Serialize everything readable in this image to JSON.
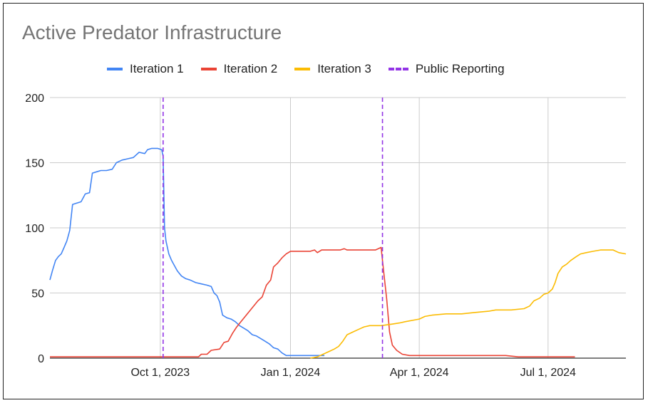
{
  "chart_data": {
    "type": "line",
    "title": "Active Predator Infrastructure",
    "xlabel": "",
    "ylabel": "",
    "ylim": [
      0,
      200
    ],
    "xlim": [
      "2023-07-15",
      "2024-08-25"
    ],
    "x_ticks": [
      {
        "date": "2023-10-01",
        "label": "Oct 1, 2023"
      },
      {
        "date": "2024-01-01",
        "label": "Jan 1, 2024"
      },
      {
        "date": "2024-04-01",
        "label": "Apr 1, 2024"
      },
      {
        "date": "2024-07-01",
        "label": "Jul 1, 2024"
      }
    ],
    "y_ticks": [
      0,
      50,
      100,
      150,
      200
    ],
    "grid": true,
    "legend_position": "top",
    "series": [
      {
        "name": "Iteration 1",
        "color": "#4285F4",
        "points": [
          [
            "2023-07-15",
            60
          ],
          [
            "2023-07-17",
            68
          ],
          [
            "2023-07-19",
            75
          ],
          [
            "2023-07-21",
            78
          ],
          [
            "2023-07-23",
            80
          ],
          [
            "2023-07-25",
            85
          ],
          [
            "2023-07-27",
            90
          ],
          [
            "2023-07-29",
            98
          ],
          [
            "2023-07-31",
            118
          ],
          [
            "2023-08-03",
            119
          ],
          [
            "2023-08-06",
            120
          ],
          [
            "2023-08-09",
            126
          ],
          [
            "2023-08-12",
            127
          ],
          [
            "2023-08-14",
            142
          ],
          [
            "2023-08-17",
            143
          ],
          [
            "2023-08-20",
            144
          ],
          [
            "2023-08-24",
            144
          ],
          [
            "2023-08-28",
            145
          ],
          [
            "2023-08-31",
            150
          ],
          [
            "2023-09-04",
            152
          ],
          [
            "2023-09-08",
            153
          ],
          [
            "2023-09-12",
            154
          ],
          [
            "2023-09-16",
            158
          ],
          [
            "2023-09-20",
            157
          ],
          [
            "2023-09-22",
            160
          ],
          [
            "2023-09-25",
            161
          ],
          [
            "2023-09-29",
            161
          ],
          [
            "2023-10-02",
            160
          ],
          [
            "2023-10-03",
            155
          ],
          [
            "2023-10-04",
            100
          ],
          [
            "2023-10-05",
            90
          ],
          [
            "2023-10-07",
            80
          ],
          [
            "2023-10-09",
            75
          ],
          [
            "2023-10-11",
            71
          ],
          [
            "2023-10-13",
            67
          ],
          [
            "2023-10-16",
            63
          ],
          [
            "2023-10-19",
            61
          ],
          [
            "2023-10-22",
            60
          ],
          [
            "2023-10-26",
            58
          ],
          [
            "2023-10-30",
            57
          ],
          [
            "2023-11-03",
            56
          ],
          [
            "2023-11-06",
            55
          ],
          [
            "2023-11-08",
            50
          ],
          [
            "2023-11-10",
            48
          ],
          [
            "2023-11-12",
            43
          ],
          [
            "2023-11-14",
            33
          ],
          [
            "2023-11-17",
            31
          ],
          [
            "2023-11-20",
            30
          ],
          [
            "2023-11-23",
            28
          ],
          [
            "2023-11-26",
            25
          ],
          [
            "2023-11-29",
            23
          ],
          [
            "2023-12-02",
            21
          ],
          [
            "2023-12-05",
            18
          ],
          [
            "2023-12-08",
            17
          ],
          [
            "2023-12-11",
            15
          ],
          [
            "2023-12-14",
            13
          ],
          [
            "2023-12-17",
            11
          ],
          [
            "2023-12-20",
            8
          ],
          [
            "2023-12-23",
            7
          ],
          [
            "2023-12-26",
            4
          ],
          [
            "2023-12-29",
            2
          ],
          [
            "2024-01-05",
            2
          ],
          [
            "2024-01-15",
            2
          ],
          [
            "2024-01-25",
            2
          ]
        ]
      },
      {
        "name": "Iteration 2",
        "color": "#EA4335",
        "points": [
          [
            "2023-07-15",
            1
          ],
          [
            "2023-09-01",
            1
          ],
          [
            "2023-10-01",
            1
          ],
          [
            "2023-10-20",
            1
          ],
          [
            "2023-10-28",
            1
          ],
          [
            "2023-10-30",
            3
          ],
          [
            "2023-11-03",
            3
          ],
          [
            "2023-11-06",
            6
          ],
          [
            "2023-11-12",
            7
          ],
          [
            "2023-11-15",
            12
          ],
          [
            "2023-11-18",
            13
          ],
          [
            "2023-11-21",
            19
          ],
          [
            "2023-11-24",
            24
          ],
          [
            "2023-11-27",
            28
          ],
          [
            "2023-11-30",
            32
          ],
          [
            "2023-12-03",
            36
          ],
          [
            "2023-12-06",
            40
          ],
          [
            "2023-12-09",
            44
          ],
          [
            "2023-12-12",
            47
          ],
          [
            "2023-12-15",
            56
          ],
          [
            "2023-12-18",
            60
          ],
          [
            "2023-12-20",
            70
          ],
          [
            "2023-12-23",
            73
          ],
          [
            "2023-12-26",
            77
          ],
          [
            "2023-12-29",
            80
          ],
          [
            "2024-01-01",
            82
          ],
          [
            "2024-01-10",
            82
          ],
          [
            "2024-01-15",
            82
          ],
          [
            "2024-01-18",
            83
          ],
          [
            "2024-01-20",
            81
          ],
          [
            "2024-01-23",
            83
          ],
          [
            "2024-02-01",
            83
          ],
          [
            "2024-02-05",
            83
          ],
          [
            "2024-02-08",
            84
          ],
          [
            "2024-02-10",
            83
          ],
          [
            "2024-02-20",
            83
          ],
          [
            "2024-03-01",
            83
          ],
          [
            "2024-03-05",
            85
          ],
          [
            "2024-03-07",
            65
          ],
          [
            "2024-03-09",
            45
          ],
          [
            "2024-03-11",
            20
          ],
          [
            "2024-03-13",
            10
          ],
          [
            "2024-03-16",
            6
          ],
          [
            "2024-03-20",
            3
          ],
          [
            "2024-03-25",
            2
          ],
          [
            "2024-04-15",
            2
          ],
          [
            "2024-05-15",
            2
          ],
          [
            "2024-06-01",
            2
          ],
          [
            "2024-06-10",
            1
          ],
          [
            "2024-06-15",
            1
          ],
          [
            "2024-07-01",
            1
          ],
          [
            "2024-07-20",
            1
          ]
        ]
      },
      {
        "name": "Iteration 3",
        "color": "#FBBC04",
        "points": [
          [
            "2024-01-15",
            0
          ],
          [
            "2024-01-20",
            1
          ],
          [
            "2024-01-24",
            3
          ],
          [
            "2024-01-28",
            5
          ],
          [
            "2024-02-01",
            7
          ],
          [
            "2024-02-04",
            9
          ],
          [
            "2024-02-07",
            13
          ],
          [
            "2024-02-10",
            18
          ],
          [
            "2024-02-14",
            20
          ],
          [
            "2024-02-18",
            22
          ],
          [
            "2024-02-22",
            24
          ],
          [
            "2024-02-26",
            25
          ],
          [
            "2024-03-05",
            25
          ],
          [
            "2024-03-12",
            26
          ],
          [
            "2024-03-18",
            27
          ],
          [
            "2024-03-22",
            28
          ],
          [
            "2024-04-01",
            30
          ],
          [
            "2024-04-05",
            32
          ],
          [
            "2024-04-10",
            33
          ],
          [
            "2024-04-20",
            34
          ],
          [
            "2024-05-01",
            34
          ],
          [
            "2024-05-10",
            35
          ],
          [
            "2024-05-20",
            36
          ],
          [
            "2024-05-25",
            37
          ],
          [
            "2024-06-05",
            37
          ],
          [
            "2024-06-14",
            38
          ],
          [
            "2024-06-18",
            40
          ],
          [
            "2024-06-21",
            44
          ],
          [
            "2024-06-25",
            46
          ],
          [
            "2024-06-28",
            49
          ],
          [
            "2024-07-01",
            50
          ],
          [
            "2024-07-04",
            53
          ],
          [
            "2024-07-06",
            58
          ],
          [
            "2024-07-08",
            65
          ],
          [
            "2024-07-11",
            70
          ],
          [
            "2024-07-14",
            72
          ],
          [
            "2024-07-17",
            75
          ],
          [
            "2024-07-21",
            78
          ],
          [
            "2024-07-24",
            80
          ],
          [
            "2024-07-28",
            81
          ],
          [
            "2024-08-02",
            82
          ],
          [
            "2024-08-07",
            83
          ],
          [
            "2024-08-12",
            83
          ],
          [
            "2024-08-16",
            83
          ],
          [
            "2024-08-20",
            81
          ],
          [
            "2024-08-25",
            80
          ]
        ]
      },
      {
        "name": "Public Reporting",
        "color": "#9334E6",
        "dashed": true,
        "vertical_dates": [
          "2023-10-03",
          "2024-03-06"
        ]
      }
    ]
  }
}
